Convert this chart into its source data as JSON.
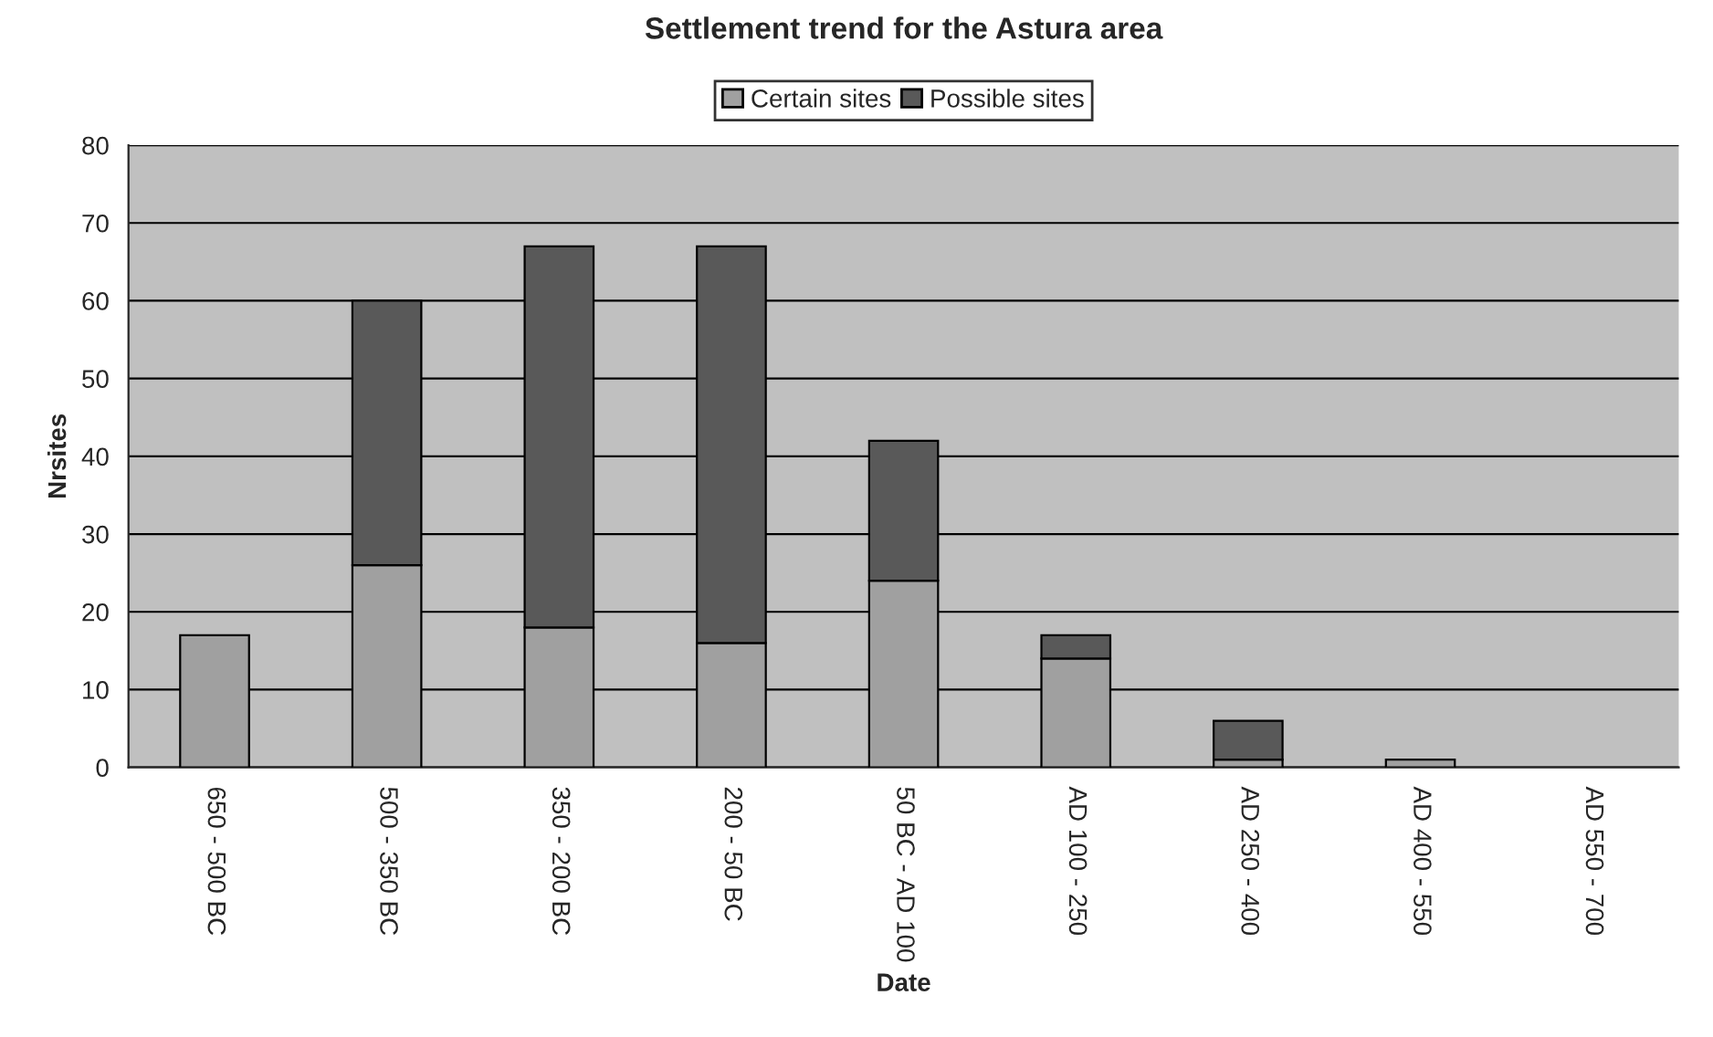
{
  "chart_data": {
    "type": "bar",
    "title": "Settlement trend for the Astura area",
    "xlabel": "Date",
    "ylabel": "Nrsites",
    "categories": [
      "650 - 500 BC",
      "500 - 350 BC",
      "350 - 200 BC",
      "200 - 50 BC",
      "50 BC - AD 100",
      "AD 100 - 250",
      "AD 250 - 400",
      "AD 400 - 550",
      "AD 550 - 700"
    ],
    "stacked": true,
    "series": [
      {
        "name": "Certain sites",
        "color": "#a0a0a0",
        "values": [
          17,
          26,
          18,
          16,
          24,
          14,
          1,
          1,
          0
        ]
      },
      {
        "name": "Possible sites",
        "color": "#595959",
        "values": [
          0,
          34,
          49,
          51,
          18,
          3,
          5,
          0,
          0
        ]
      }
    ],
    "ylim": [
      0,
      80
    ],
    "yticks": [
      0,
      10,
      20,
      30,
      40,
      50,
      60,
      70,
      80
    ],
    "grid": "y",
    "legend": "top"
  }
}
